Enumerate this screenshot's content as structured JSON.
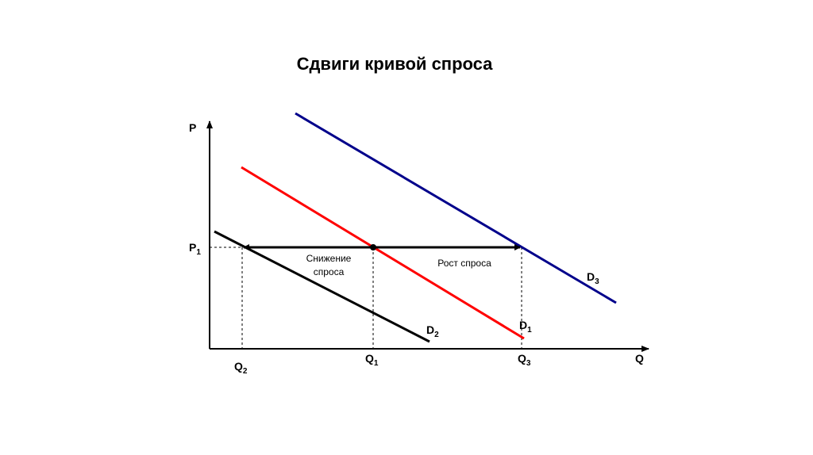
{
  "title": "Сдвиги кривой спроса",
  "axes": {
    "y_label": "P",
    "x_label": "Q",
    "price_level": {
      "letter": "P",
      "sub": "1"
    }
  },
  "quantities": [
    {
      "letter": "Q",
      "sub": "2"
    },
    {
      "letter": "Q",
      "sub": "1"
    },
    {
      "letter": "Q",
      "sub": "3"
    }
  ],
  "curves": [
    {
      "letter": "D",
      "sub": "1"
    },
    {
      "letter": "D",
      "sub": "2"
    },
    {
      "letter": "D",
      "sub": "3"
    }
  ],
  "annotations": {
    "decrease": [
      "Снижение",
      "спроса"
    ],
    "increase": "Рост спроса"
  }
}
